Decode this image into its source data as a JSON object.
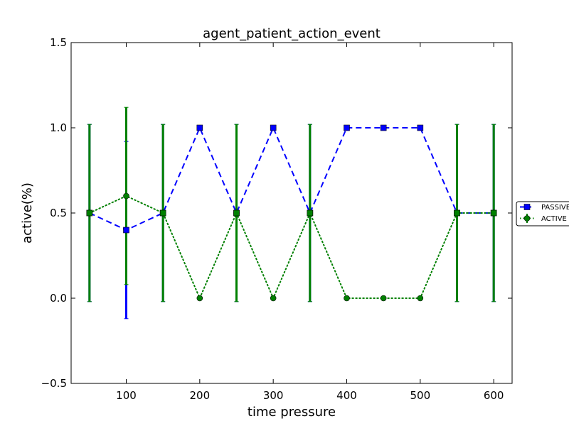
{
  "chart_data": {
    "type": "line",
    "title": "agent_patient_action_event",
    "xlabel": "time pressure",
    "ylabel": "active(%)",
    "xlim": [
      25,
      625
    ],
    "ylim": [
      -0.5,
      1.5
    ],
    "xticks": [
      100,
      200,
      300,
      400,
      500,
      600
    ],
    "xtick_labels": [
      "100",
      "200",
      "300",
      "400",
      "500",
      "600"
    ],
    "yticks": [
      -0.5,
      0.0,
      0.5,
      1.0,
      1.5
    ],
    "ytick_labels": [
      "−0.5",
      "0.0",
      "0.5",
      "1.0",
      "1.5"
    ],
    "grid": false,
    "legend_position": "right, outside plot area",
    "x": [
      50,
      100,
      150,
      200,
      250,
      300,
      350,
      400,
      450,
      500,
      550,
      600
    ],
    "series": [
      {
        "name": "PASSIVE",
        "color": "#0000ff",
        "linestyle": "dashed",
        "marker": "square",
        "values": [
          0.5,
          0.4,
          0.5,
          1.0,
          0.5,
          1.0,
          0.5,
          1.0,
          1.0,
          1.0,
          0.5,
          0.5
        ],
        "error": [
          0.52,
          0.52,
          0.52,
          0,
          0.52,
          0,
          0.52,
          0,
          0,
          0,
          0.52,
          0.52
        ]
      },
      {
        "name": "ACTIVE",
        "color": "#008000",
        "linestyle": "dotted",
        "marker": "circle",
        "values": [
          0.5,
          0.6,
          0.5,
          0.0,
          0.5,
          0.0,
          0.5,
          0.0,
          0.0,
          0.0,
          0.5,
          0.5
        ],
        "error": [
          0.52,
          0.52,
          0.52,
          0,
          0.52,
          0,
          0.52,
          0,
          0,
          0,
          0.52,
          0.52
        ]
      }
    ]
  }
}
